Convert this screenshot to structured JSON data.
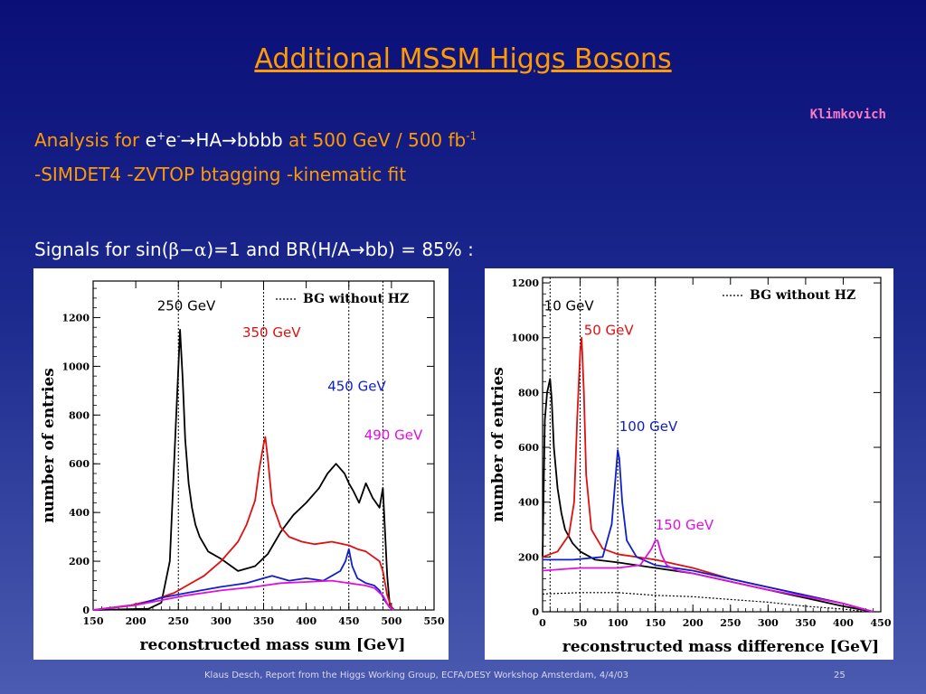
{
  "slide": {
    "title": "Additional MSSM Higgs Bosons",
    "author": "Klimkovich",
    "line1": {
      "prefix": "Analysis for ",
      "e1": "e",
      "plus": "+",
      "e2": "e",
      "minus": "-",
      "arrow1": "→",
      "ha": "HA",
      "arrow2": "→",
      "bbbb": "bbbb",
      "suffix": " at 500 GeV / 500 fb",
      "sup": "-1"
    },
    "line2": "-SIMDET4  -ZVTOP btagging   -kinematic fit",
    "line3": {
      "prefix": "Signals for sin(",
      "beta": "β",
      "dash": "−",
      "alpha": "α",
      "mid": ")=1 and BR(H/A",
      "arrow": "→",
      "suffix": "bb) = 85% :"
    },
    "footer": "Klaus Desch, Report from the Higgs Working Group, ECFA/DESY Workshop Amsterdam, 4/4/03",
    "page": "25"
  },
  "colors": {
    "title": "#ff9a00",
    "author": "#ff79c6",
    "black": "#000000",
    "red": "#e01010",
    "blue": "#1020c8",
    "magenta": "#e010e0"
  },
  "chart_data": [
    {
      "type": "line",
      "xlabel": "reconstructed mass sum [GeV]",
      "ylabel": "number of entries",
      "xlim": [
        150,
        550
      ],
      "ylim": [
        0,
        1350
      ],
      "xticks": [
        150,
        200,
        250,
        300,
        350,
        400,
        450,
        500,
        550
      ],
      "yticks": [
        0,
        200,
        400,
        600,
        800,
        1000,
        1200
      ],
      "legend": {
        "label": "BG without HZ",
        "style": "dotted",
        "placement": "top-right"
      },
      "vlines": [
        250,
        350,
        450,
        490
      ],
      "annotations": [
        {
          "text": "250 GeV",
          "x": 225,
          "y": 1230,
          "color": "#000000"
        },
        {
          "text": "350 GeV",
          "x": 325,
          "y": 1120,
          "color": "#e01010"
        },
        {
          "text": "450 GeV",
          "x": 425,
          "y": 900,
          "color": "#1020c8"
        },
        {
          "text": "490 GeV",
          "x": 468,
          "y": 700,
          "color": "#e010e0"
        }
      ],
      "series": [
        {
          "color": "#000000",
          "x": [
            150,
            215,
            230,
            240,
            245,
            250,
            252,
            255,
            258,
            262,
            266,
            270,
            275,
            285,
            300,
            320,
            340,
            355,
            370,
            385,
            400,
            415,
            425,
            435,
            445,
            450,
            455,
            462,
            470,
            478,
            486,
            490,
            495,
            498,
            503
          ],
          "y": [
            0,
            5,
            30,
            200,
            600,
            1000,
            1150,
            950,
            700,
            520,
            420,
            350,
            300,
            240,
            210,
            160,
            180,
            230,
            320,
            390,
            440,
            500,
            560,
            600,
            560,
            520,
            490,
            440,
            520,
            460,
            420,
            500,
            140,
            20,
            0
          ]
        },
        {
          "color": "#e01010",
          "x": [
            150,
            195,
            220,
            245,
            260,
            280,
            300,
            320,
            330,
            340,
            345,
            350,
            352,
            355,
            360,
            370,
            380,
            395,
            410,
            430,
            450,
            460,
            470,
            478,
            486,
            490,
            495,
            500,
            503
          ],
          "y": [
            0,
            20,
            40,
            70,
            100,
            140,
            200,
            280,
            350,
            450,
            580,
            680,
            710,
            620,
            440,
            340,
            300,
            280,
            270,
            280,
            265,
            250,
            240,
            220,
            200,
            160,
            60,
            10,
            0
          ]
        },
        {
          "color": "#1020c8",
          "x": [
            150,
            200,
            230,
            260,
            300,
            330,
            350,
            360,
            380,
            400,
            420,
            440,
            446,
            450,
            454,
            460,
            470,
            480,
            486,
            492,
            498,
            503
          ],
          "y": [
            0,
            20,
            50,
            70,
            95,
            110,
            130,
            140,
            120,
            130,
            120,
            160,
            200,
            250,
            180,
            130,
            110,
            100,
            80,
            40,
            10,
            0
          ]
        },
        {
          "color": "#e010e0",
          "x": [
            150,
            200,
            230,
            260,
            300,
            340,
            370,
            400,
            430,
            450,
            470,
            480,
            486,
            490,
            496,
            500,
            503
          ],
          "y": [
            0,
            20,
            40,
            60,
            80,
            95,
            110,
            115,
            120,
            110,
            100,
            90,
            70,
            60,
            20,
            5,
            0
          ]
        }
      ]
    },
    {
      "type": "line",
      "xlabel": "reconstructed mass difference [GeV]",
      "ylabel": "number of entries",
      "xlim": [
        0,
        450
      ],
      "ylim": [
        0,
        1220
      ],
      "xticks": [
        0,
        50,
        100,
        150,
        200,
        250,
        300,
        350,
        400,
        450
      ],
      "yticks": [
        0,
        200,
        400,
        600,
        800,
        1000,
        1200
      ],
      "legend": {
        "label": "BG without HZ",
        "style": "dotted",
        "placement": "top-right"
      },
      "vlines": [
        10,
        50,
        100,
        150
      ],
      "annotations": [
        {
          "text": "10 GeV",
          "x": 2,
          "y": 1100,
          "color": "#000000"
        },
        {
          "text": "50 GeV",
          "x": 55,
          "y": 1010,
          "color": "#e01010"
        },
        {
          "text": "100 GeV",
          "x": 102,
          "y": 660,
          "color": "#1020c8"
        },
        {
          "text": "150 GeV",
          "x": 150,
          "y": 300,
          "color": "#e010e0"
        }
      ],
      "series": [
        {
          "color": "#000000",
          "x": [
            0,
            3,
            6,
            10,
            12,
            15,
            20,
            25,
            30,
            40,
            50,
            70,
            100,
            150,
            200,
            250,
            300,
            350,
            400,
            420,
            440
          ],
          "y": [
            200,
            700,
            800,
            850,
            780,
            600,
            450,
            360,
            300,
            250,
            220,
            190,
            180,
            160,
            140,
            110,
            80,
            50,
            20,
            10,
            0
          ]
        },
        {
          "color": "#e01010",
          "x": [
            0,
            20,
            35,
            42,
            46,
            50,
            52,
            55,
            58,
            65,
            80,
            100,
            150,
            200,
            250,
            300,
            350,
            400,
            420,
            440
          ],
          "y": [
            200,
            220,
            280,
            400,
            700,
            950,
            1000,
            800,
            500,
            300,
            230,
            210,
            190,
            160,
            120,
            90,
            60,
            30,
            15,
            0
          ]
        },
        {
          "color": "#1020c8",
          "x": [
            0,
            40,
            80,
            92,
            98,
            100,
            102,
            106,
            112,
            125,
            150,
            200,
            250,
            300,
            350,
            400,
            420,
            440
          ],
          "y": [
            190,
            190,
            200,
            320,
            520,
            590,
            560,
            400,
            260,
            200,
            170,
            150,
            120,
            90,
            60,
            30,
            15,
            0
          ]
        },
        {
          "color": "#e010e0",
          "x": [
            0,
            50,
            100,
            130,
            145,
            150,
            153,
            158,
            165,
            180,
            200,
            250,
            300,
            350,
            400,
            420,
            440
          ],
          "y": [
            150,
            160,
            160,
            170,
            230,
            260,
            260,
            210,
            170,
            150,
            140,
            110,
            80,
            55,
            30,
            15,
            0
          ]
        },
        {
          "color": "#000000",
          "dotted": true,
          "x": [
            0,
            50,
            100,
            150,
            200,
            250,
            300,
            350,
            400,
            430
          ],
          "y": [
            65,
            70,
            70,
            60,
            55,
            45,
            35,
            20,
            10,
            0
          ]
        }
      ]
    }
  ]
}
